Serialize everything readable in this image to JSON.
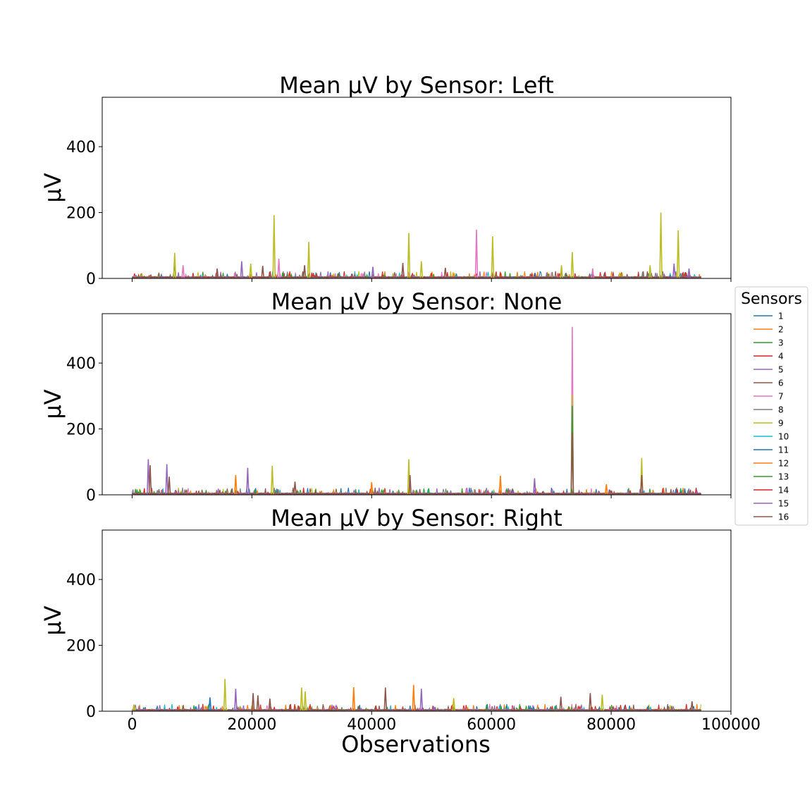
{
  "chart_data": {
    "type": "line",
    "x_label": "Observations",
    "x_ticks": [
      0,
      20000,
      40000,
      60000,
      80000,
      100000
    ],
    "x_tick_labels": [
      "0",
      "20000",
      "40000",
      "60000",
      "80000",
      "100000"
    ],
    "x_range": [
      -5000,
      100000
    ],
    "y_range": [
      0,
      550
    ],
    "y_ticks": [
      0,
      200,
      400
    ],
    "y_tick_labels": [
      "0",
      "200",
      "400"
    ],
    "legend": {
      "title": "Sensors",
      "placement": "right",
      "entries": [
        "1",
        "2",
        "3",
        "4",
        "5",
        "6",
        "7",
        "8",
        "9",
        "10",
        "11",
        "12",
        "13",
        "14",
        "15",
        "16"
      ]
    },
    "series_colors": [
      "#1f77b4",
      "#ff7f0e",
      "#2ca02c",
      "#d62728",
      "#9467bd",
      "#8c564b",
      "#e377c2",
      "#7f7f7f",
      "#bcbd22",
      "#17becf",
      "#1f77b4",
      "#ff7f0e",
      "#2ca02c",
      "#d62728",
      "#9467bd",
      "#8c564b"
    ],
    "x_extent": [
      0,
      95000
    ],
    "panels": [
      {
        "title": "Mean µV by Sensor: Left",
        "y_label": "µV",
        "baseline_level": 4,
        "peaks": [
          {
            "x": 7100,
            "y": 55,
            "series": 6
          },
          {
            "x": 7100,
            "y": 78,
            "series": 9
          },
          {
            "x": 8500,
            "y": 40,
            "series": 7
          },
          {
            "x": 14200,
            "y": 30,
            "series": 6
          },
          {
            "x": 18300,
            "y": 52,
            "series": 5
          },
          {
            "x": 19800,
            "y": 45,
            "series": 9
          },
          {
            "x": 21800,
            "y": 38,
            "series": 6
          },
          {
            "x": 23700,
            "y": 192,
            "series": 9
          },
          {
            "x": 24500,
            "y": 60,
            "series": 7
          },
          {
            "x": 28800,
            "y": 40,
            "series": 6
          },
          {
            "x": 29500,
            "y": 111,
            "series": 9
          },
          {
            "x": 40200,
            "y": 35,
            "series": 5
          },
          {
            "x": 45200,
            "y": 47,
            "series": 6
          },
          {
            "x": 46200,
            "y": 138,
            "series": 9
          },
          {
            "x": 48300,
            "y": 52,
            "series": 9
          },
          {
            "x": 52300,
            "y": 32,
            "series": 6
          },
          {
            "x": 57500,
            "y": 148,
            "series": 7
          },
          {
            "x": 60200,
            "y": 128,
            "series": 9
          },
          {
            "x": 71700,
            "y": 40,
            "series": 9
          },
          {
            "x": 73500,
            "y": 80,
            "series": 9
          },
          {
            "x": 76900,
            "y": 30,
            "series": 7
          },
          {
            "x": 86500,
            "y": 40,
            "series": 9
          },
          {
            "x": 88300,
            "y": 200,
            "series": 9
          },
          {
            "x": 90500,
            "y": 45,
            "series": 5
          },
          {
            "x": 91200,
            "y": 146,
            "series": 9
          },
          {
            "x": 93000,
            "y": 30,
            "series": 15
          }
        ]
      },
      {
        "title": "Mean µV by Sensor: None",
        "y_label": "µV",
        "baseline_level": 4,
        "peaks": [
          {
            "x": 2700,
            "y": 108,
            "series": 5
          },
          {
            "x": 3000,
            "y": 90,
            "series": 6
          },
          {
            "x": 5800,
            "y": 93,
            "series": 5
          },
          {
            "x": 6200,
            "y": 55,
            "series": 6
          },
          {
            "x": 17300,
            "y": 60,
            "series": 2
          },
          {
            "x": 19300,
            "y": 82,
            "series": 5
          },
          {
            "x": 23400,
            "y": 88,
            "series": 9
          },
          {
            "x": 27200,
            "y": 40,
            "series": 6
          },
          {
            "x": 40000,
            "y": 38,
            "series": 2
          },
          {
            "x": 46200,
            "y": 108,
            "series": 9
          },
          {
            "x": 46400,
            "y": 60,
            "series": 6
          },
          {
            "x": 61500,
            "y": 58,
            "series": 2
          },
          {
            "x": 67200,
            "y": 50,
            "series": 5
          },
          {
            "x": 73500,
            "y": 510,
            "series": 7
          },
          {
            "x": 73500,
            "y": 305,
            "series": 9
          },
          {
            "x": 73500,
            "y": 270,
            "series": 3
          },
          {
            "x": 73500,
            "y": 190,
            "series": 6
          },
          {
            "x": 79200,
            "y": 32,
            "series": 2
          },
          {
            "x": 85100,
            "y": 112,
            "series": 9
          },
          {
            "x": 85100,
            "y": 60,
            "series": 6
          }
        ]
      },
      {
        "title": "Mean µV by Sensor: Right",
        "y_label": "µV",
        "baseline_level": 4,
        "peaks": [
          {
            "x": 300,
            "y": 20,
            "series": 9
          },
          {
            "x": 13000,
            "y": 42,
            "series": 1
          },
          {
            "x": 15500,
            "y": 98,
            "series": 9
          },
          {
            "x": 17300,
            "y": 68,
            "series": 5
          },
          {
            "x": 20200,
            "y": 55,
            "series": 6
          },
          {
            "x": 21000,
            "y": 48,
            "series": 6
          },
          {
            "x": 23000,
            "y": 38,
            "series": 6
          },
          {
            "x": 28300,
            "y": 72,
            "series": 9
          },
          {
            "x": 28900,
            "y": 60,
            "series": 9
          },
          {
            "x": 37000,
            "y": 73,
            "series": 2
          },
          {
            "x": 42300,
            "y": 72,
            "series": 6
          },
          {
            "x": 47000,
            "y": 80,
            "series": 2
          },
          {
            "x": 48300,
            "y": 68,
            "series": 5
          },
          {
            "x": 53700,
            "y": 40,
            "series": 9
          },
          {
            "x": 71600,
            "y": 44,
            "series": 6
          },
          {
            "x": 76500,
            "y": 55,
            "series": 6
          },
          {
            "x": 78500,
            "y": 50,
            "series": 9
          },
          {
            "x": 93500,
            "y": 30,
            "series": 6
          }
        ]
      }
    ]
  }
}
